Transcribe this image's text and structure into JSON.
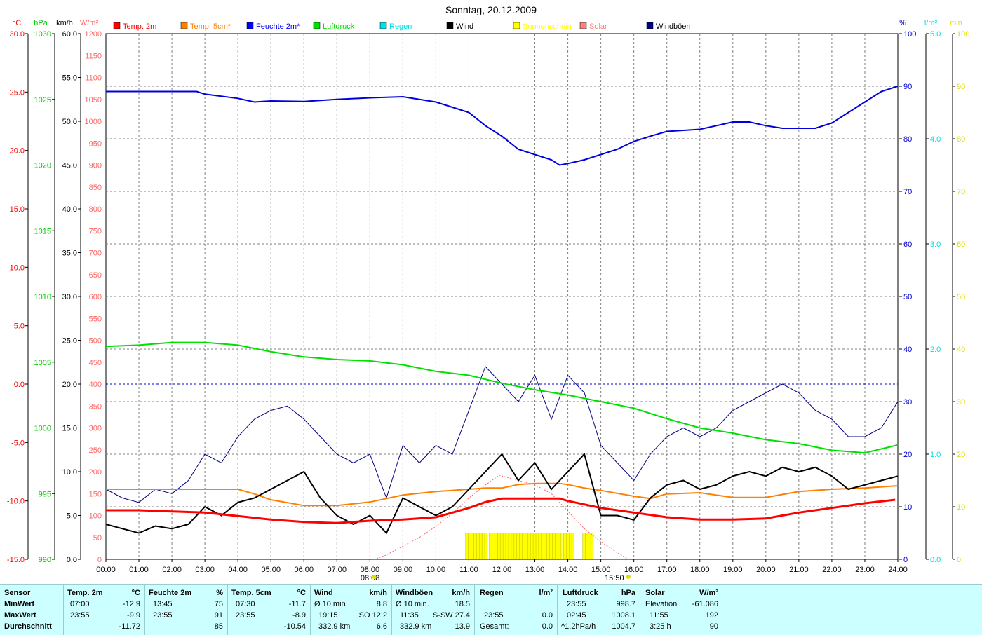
{
  "title": "Sonntag, 20.12.2009",
  "axis_units": {
    "temp": "°C",
    "pressure": "hPa",
    "wind": "km/h",
    "solar": "W/m²",
    "humidity": "%",
    "rain": "l/m²",
    "sun": "min"
  },
  "legend": [
    {
      "label": "Temp. 2m",
      "color": "#ff0000"
    },
    {
      "label": "Temp. 5cm*",
      "color": "#ff8000"
    },
    {
      "label": "Feuchte 2m*",
      "color": "#0000ff"
    },
    {
      "label": "Luftdruck",
      "color": "#00e000"
    },
    {
      "label": "Regen",
      "color": "#00e0e0"
    },
    {
      "label": "Wind",
      "color": "#000000"
    },
    {
      "label": "Sonnenschein",
      "color": "#ffff00"
    },
    {
      "label": "Solar",
      "color": "#ff8080"
    },
    {
      "label": "Windböen",
      "color": "#000080"
    }
  ],
  "colors": {
    "temp": "#ff0000",
    "pressure": "#00cc00",
    "wind": "#000000",
    "solar": "#ff6666",
    "humidity": "#0000cc",
    "rain": "#00e0e0",
    "sun": "#e0e000",
    "temp5cm": "#ff8000",
    "gust": "#000080",
    "grid": "#808080",
    "stats_bg": "#ccffff"
  },
  "chart_data": {
    "type": "line",
    "title": "Sonntag, 20.12.2009",
    "x_ticks": [
      "00:00",
      "01:00",
      "02:00",
      "03:00",
      "04:00",
      "05:00",
      "06:00",
      "07:00",
      "08:00",
      "09:00",
      "10:00",
      "11:00",
      "12:00",
      "13:00",
      "14:00",
      "15:00",
      "16:00",
      "17:00",
      "18:00",
      "19:00",
      "20:00",
      "21:00",
      "22:00",
      "23:00",
      "24:00"
    ],
    "sunrise": "08:08",
    "sunset": "15:50",
    "axes": {
      "temp": {
        "unit": "°C",
        "range": [
          -15,
          30
        ],
        "ticks": [
          "30.0",
          "25.0",
          "20.0",
          "15.0",
          "10.0",
          "5.0",
          "0.0",
          "-5.0",
          "-10.0",
          "-15.0"
        ]
      },
      "pressure": {
        "unit": "hPa",
        "range": [
          990,
          1030
        ],
        "ticks": [
          "1030",
          "1025",
          "1020",
          "1015",
          "1010",
          "1005",
          "1000",
          "995",
          "990"
        ]
      },
      "wind": {
        "unit": "km/h",
        "range": [
          0,
          60
        ],
        "ticks": [
          "60.0",
          "55.0",
          "50.0",
          "45.0",
          "40.0",
          "35.0",
          "30.0",
          "25.0",
          "20.0",
          "15.0",
          "10.0",
          "5.0",
          "0.0"
        ]
      },
      "solar": {
        "unit": "W/m²",
        "range": [
          0,
          1200
        ],
        "ticks": [
          "1200",
          "1150",
          "1100",
          "1050",
          "1000",
          "950",
          "900",
          "850",
          "800",
          "750",
          "700",
          "650",
          "600",
          "550",
          "500",
          "450",
          "400",
          "350",
          "300",
          "250",
          "200",
          "150",
          "100",
          "50",
          "0"
        ]
      },
      "humidity": {
        "unit": "%",
        "range": [
          0,
          100
        ],
        "ticks": [
          "100",
          "90",
          "80",
          "70",
          "60",
          "50",
          "40",
          "30",
          "20",
          "10",
          "0"
        ]
      },
      "rain": {
        "unit": "l/m²",
        "range": [
          0,
          5
        ],
        "ticks": [
          "5.0",
          "4.0",
          "3.0",
          "2.0",
          "1.0",
          "0.0"
        ]
      },
      "sun": {
        "unit": "min",
        "range": [
          0,
          100
        ],
        "ticks": [
          "100",
          "90",
          "80",
          "70",
          "60",
          "50",
          "40",
          "30",
          "20",
          "10",
          "0"
        ]
      }
    },
    "series": [
      {
        "name": "Temp. 2m",
        "unit": "°C",
        "x": [
          0,
          1,
          2,
          3,
          4,
          5,
          6,
          7,
          8,
          9,
          10,
          11,
          11.5,
          12,
          13,
          13.75,
          14,
          15,
          16,
          17,
          18,
          19,
          20,
          21,
          22,
          23,
          23.92
        ],
        "values": [
          -10.8,
          -10.8,
          -10.9,
          -11.0,
          -11.3,
          -11.6,
          -11.8,
          -11.9,
          -11.7,
          -11.6,
          -11.4,
          -10.6,
          -10.1,
          -9.8,
          -9.8,
          -9.8,
          -10.0,
          -10.6,
          -11.0,
          -11.4,
          -11.6,
          -11.6,
          -11.5,
          -11.0,
          -10.6,
          -10.2,
          -9.9
        ]
      },
      {
        "name": "Temp. 5cm*",
        "unit": "°C",
        "x": [
          0,
          1,
          2,
          3,
          4,
          4.5,
          5,
          6,
          7,
          8,
          8.5,
          9,
          10,
          11,
          11.5,
          12,
          12.5,
          13,
          13.75,
          14,
          14.5,
          15,
          16,
          16.5,
          17,
          18,
          19,
          20,
          21,
          22,
          23,
          24
        ],
        "values": [
          -9.0,
          -9.0,
          -9.0,
          -9.0,
          -9.0,
          -9.4,
          -9.9,
          -10.4,
          -10.4,
          -10.1,
          -9.8,
          -9.5,
          -9.2,
          -9.0,
          -8.9,
          -8.9,
          -8.6,
          -8.5,
          -8.5,
          -8.6,
          -8.9,
          -9.1,
          -9.6,
          -9.8,
          -9.4,
          -9.3,
          -9.7,
          -9.7,
          -9.2,
          -9.0,
          -8.9,
          -8.7
        ]
      },
      {
        "name": "Feuchte 2m*",
        "unit": "%",
        "x": [
          0,
          1,
          2,
          2.75,
          3,
          4,
          4.5,
          5,
          6,
          7,
          8,
          9,
          10,
          10.5,
          11,
          11.5,
          12,
          12.5,
          13,
          13.5,
          13.75,
          14,
          14.5,
          15,
          15.5,
          16,
          16.5,
          17,
          17.5,
          18,
          18.5,
          19,
          19.5,
          20,
          20.5,
          21,
          21.5,
          22,
          22.5,
          23,
          23.5,
          24
        ],
        "values": [
          89,
          89,
          89,
          89,
          88.5,
          87.7,
          87,
          87.2,
          87.1,
          87.5,
          87.8,
          88,
          87,
          86,
          85,
          82.5,
          80.5,
          78,
          77,
          76,
          75,
          75.3,
          76,
          77,
          78,
          79.5,
          80.5,
          81.4,
          81.6,
          81.8,
          82.5,
          83.2,
          83.2,
          82.5,
          82,
          82,
          82,
          83,
          85,
          87,
          89,
          90
        ]
      },
      {
        "name": "Luftdruck",
        "unit": "hPa",
        "x": [
          0,
          1,
          2,
          3,
          4,
          5,
          6,
          7,
          8,
          9,
          10,
          11,
          12,
          13,
          14,
          15,
          16,
          17,
          18,
          19,
          20,
          21,
          22,
          23,
          24
        ],
        "values": [
          1006.2,
          1006.3,
          1006.5,
          1006.5,
          1006.3,
          1005.8,
          1005.4,
          1005.2,
          1005.1,
          1004.8,
          1004.3,
          1004.0,
          1003.4,
          1002.9,
          1002.5,
          1002.0,
          1001.5,
          1000.7,
          1000.0,
          999.6,
          999.1,
          998.8,
          998.3,
          998.1,
          998.7
        ]
      },
      {
        "name": "Wind",
        "unit": "km/h",
        "x": [
          0,
          0.5,
          1,
          1.5,
          2,
          2.5,
          3,
          3.5,
          4,
          4.5,
          5,
          5.5,
          6,
          6.5,
          7,
          7.5,
          8,
          8.5,
          9,
          9.5,
          10,
          10.5,
          11,
          11.5,
          12,
          12.5,
          13,
          13.5,
          14,
          14.5,
          15,
          15.5,
          16,
          16.5,
          17,
          17.5,
          18,
          18.5,
          19,
          19.5,
          20,
          20.5,
          21,
          21.5,
          22,
          22.5,
          23,
          23.5,
          24
        ],
        "values": [
          4.0,
          3.5,
          3.0,
          3.8,
          3.5,
          4.0,
          6.0,
          5.0,
          6.5,
          7.0,
          8.0,
          9.0,
          10.0,
          7.0,
          5.0,
          4.0,
          5.0,
          3.0,
          7.0,
          6.0,
          5.0,
          6.0,
          8.0,
          10.0,
          12.0,
          9.0,
          11.0,
          8.0,
          10.0,
          12.0,
          5.0,
          5.0,
          4.5,
          7.0,
          8.5,
          9.0,
          8.0,
          8.5,
          9.5,
          10.0,
          9.5,
          10.5,
          10.0,
          10.5,
          9.5,
          8.0,
          8.5,
          9.0,
          9.5
        ]
      },
      {
        "name": "Windböen",
        "unit": "km/h",
        "x": [
          0,
          0.5,
          1,
          1.5,
          2,
          2.5,
          3,
          3.5,
          4,
          4.5,
          5,
          5.5,
          6,
          6.5,
          7,
          7.5,
          8,
          8.5,
          9,
          9.5,
          10,
          10.5,
          11,
          11.5,
          12,
          12.5,
          13,
          13.5,
          14,
          14.5,
          15,
          15.5,
          16,
          16.5,
          17,
          17.5,
          18,
          18.5,
          19,
          19.5,
          20,
          20.5,
          21,
          21.5,
          22,
          22.5,
          23,
          23.5,
          24
        ],
        "values": [
          8.0,
          7.0,
          6.5,
          8.0,
          7.5,
          9.0,
          12.0,
          11.0,
          14.0,
          16.0,
          17.0,
          17.5,
          16.0,
          14.0,
          12.0,
          11.0,
          12.0,
          7.0,
          13.0,
          11.0,
          13.0,
          12.0,
          17.0,
          22.0,
          20.0,
          18.0,
          21.0,
          16.0,
          21.0,
          19.0,
          13.0,
          11.0,
          9.0,
          12.0,
          14.0,
          15.0,
          14.0,
          15.0,
          17.0,
          18.0,
          19.0,
          20.0,
          19.0,
          17.0,
          16.0,
          14.0,
          14.0,
          15.0,
          18.0
        ]
      },
      {
        "name": "Solar",
        "unit": "W/m²",
        "x": [
          8.13,
          8.5,
          9,
          9.5,
          10,
          10.5,
          11,
          11.5,
          11.92,
          12.5,
          13,
          13.5,
          14,
          14.5,
          15,
          15.5,
          15.83
        ],
        "values": [
          0,
          10,
          30,
          50,
          75,
          105,
          140,
          170,
          192,
          180,
          170,
          150,
          110,
          70,
          40,
          15,
          0
        ]
      },
      {
        "name": "Sonnenschein",
        "unit": "min",
        "intervals": [
          [
            10.9,
            11.55
          ],
          [
            11.62,
            13.83
          ],
          [
            13.87,
            14.2
          ],
          [
            14.45,
            14.75
          ]
        ],
        "values": [
          5
        ]
      }
    ]
  },
  "stats": {
    "sensor": {
      "header": "Sensor",
      "rows": [
        "MinWert",
        "MaxWert",
        "Durchschnitt"
      ]
    },
    "temp2m": {
      "header": "Temp. 2m",
      "unit": "°C",
      "times": [
        "07:00",
        "23:55",
        ""
      ],
      "values": [
        "-12.9",
        "-9.9",
        "-11.72"
      ]
    },
    "humidity": {
      "header": "Feuchte 2m",
      "unit": "%",
      "times": [
        "13:45",
        "23:55",
        ""
      ],
      "values": [
        "75",
        "91",
        "85"
      ]
    },
    "temp5cm": {
      "header": "Temp. 5cm",
      "unit": "°C",
      "times": [
        "07:30",
        "23:55",
        ""
      ],
      "values": [
        "-11.7",
        "-8.9",
        "-10.54"
      ]
    },
    "wind": {
      "header": "Wind",
      "unit": "km/h",
      "labels": [
        "Ø 10 min.",
        "19:15",
        "332.9 km"
      ],
      "mid": [
        "",
        "SO 12.2",
        ""
      ],
      "values": [
        "8.8",
        "",
        "6.6"
      ]
    },
    "gusts": {
      "header": "Windböen",
      "unit": "km/h",
      "labels": [
        "Ø 10 min.",
        "11:35",
        "332.9 km"
      ],
      "mid": [
        "",
        "S-SW 27.4",
        ""
      ],
      "values": [
        "18.5",
        "",
        "13.9"
      ]
    },
    "rain": {
      "header": "Regen",
      "unit": "l/m²",
      "labels": [
        "",
        "23:55",
        "Gesamt:"
      ],
      "values": [
        "",
        "0.0",
        "0.0"
      ]
    },
    "pressure": {
      "header": "Luftdruck",
      "unit": "hPa",
      "labels": [
        "23:55",
        "02:45",
        "^1.2hPa/h"
      ],
      "values": [
        "998.7",
        "1008.1",
        "1004.7"
      ]
    },
    "solar": {
      "header": "Solar",
      "unit": "W/m²",
      "labels": [
        "Elevation",
        "11:55",
        "3:25 h"
      ],
      "values": [
        "-61.086",
        "192",
        "90"
      ]
    }
  }
}
